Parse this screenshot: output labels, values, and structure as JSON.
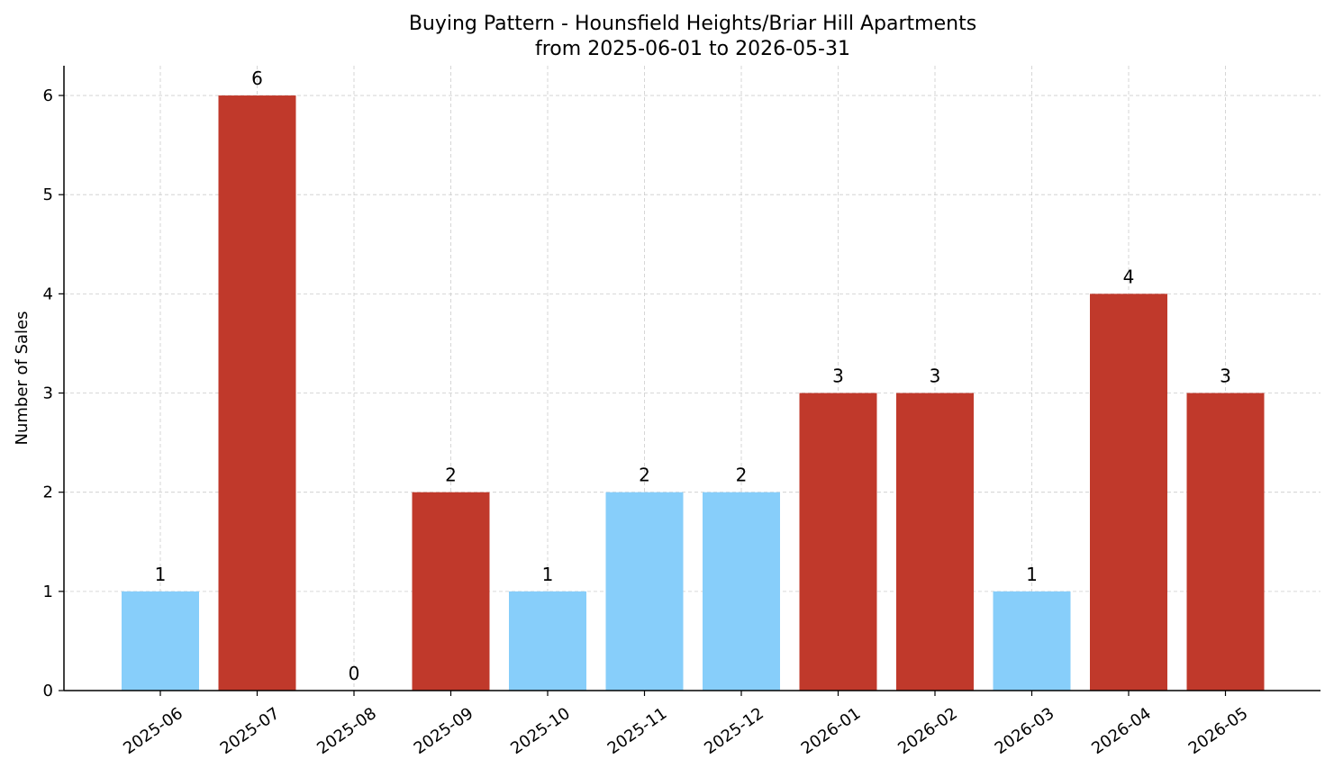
{
  "chart_data": {
    "type": "bar",
    "title_line1": "Buying Pattern - Hounsfield Heights/Briar Hill Apartments",
    "title_line2": "from 2025-06-01 to 2026-05-31",
    "xlabel": "",
    "ylabel": "Number of Sales",
    "categories": [
      "2025-06",
      "2025-07",
      "2025-08",
      "2025-09",
      "2025-10",
      "2025-11",
      "2025-12",
      "2026-01",
      "2026-02",
      "2026-03",
      "2026-04",
      "2026-05"
    ],
    "values": [
      1,
      6,
      0,
      2,
      1,
      2,
      2,
      3,
      3,
      1,
      4,
      3
    ],
    "bar_colors": [
      "#87CEFA",
      "#C0392B",
      "#C0392B",
      "#C0392B",
      "#87CEFA",
      "#87CEFA",
      "#87CEFA",
      "#C0392B",
      "#C0392B",
      "#87CEFA",
      "#C0392B",
      "#C0392B"
    ],
    "yticks": [
      0,
      1,
      2,
      3,
      4,
      5,
      6
    ],
    "ylim": [
      0,
      6.3
    ],
    "grid": true,
    "legend": "none"
  }
}
